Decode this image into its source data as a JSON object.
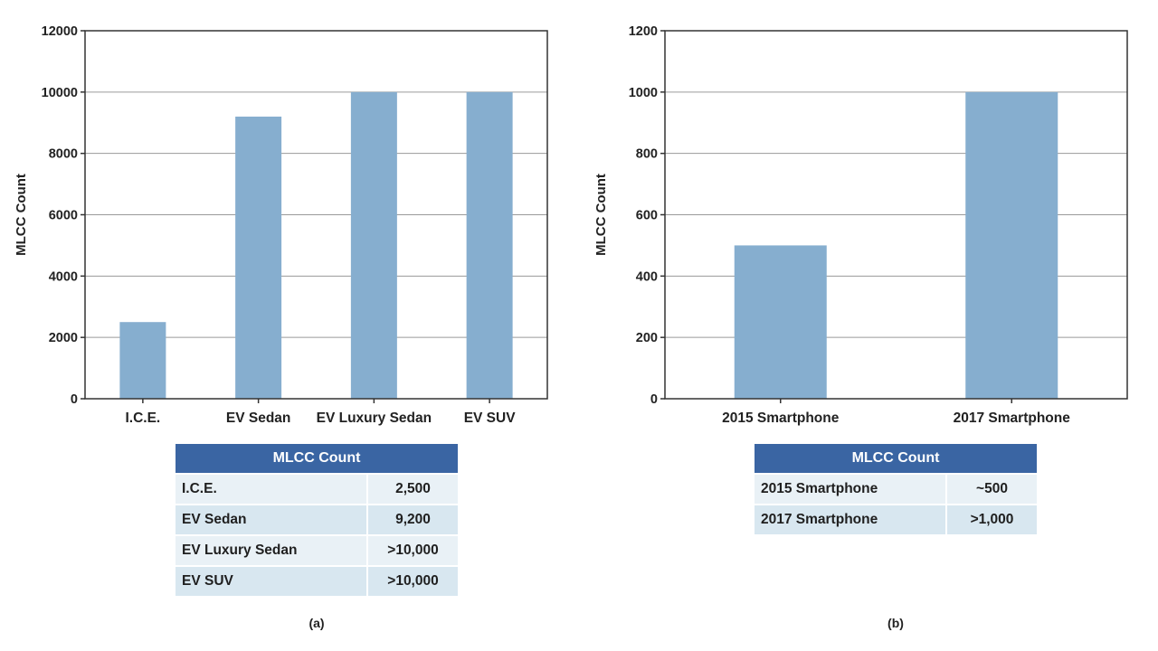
{
  "chart_data": [
    {
      "type": "bar",
      "caption": "(a)",
      "ylabel": "MLCC Count",
      "ylim": [
        0,
        12000
      ],
      "yticks": [
        "0",
        "2000",
        "4000",
        "6000",
        "8000",
        "10000",
        "12000"
      ],
      "categories": [
        "I.C.E.",
        "EV Sedan",
        "EV Luxury Sedan",
        "EV SUV"
      ],
      "values": [
        2500,
        9200,
        10000,
        10000
      ],
      "grid": true,
      "color": "#86aecf",
      "table": {
        "header": "MLCC Count",
        "rows": [
          {
            "label": "I.C.E.",
            "value": "2,500"
          },
          {
            "label": "EV Sedan",
            "value": "9,200"
          },
          {
            "label": "EV Luxury Sedan",
            "value": ">10,000"
          },
          {
            "label": "EV SUV",
            "value": ">10,000"
          }
        ]
      }
    },
    {
      "type": "bar",
      "caption": "(b)",
      "ylabel": "MLCC Count",
      "ylim": [
        0,
        1200
      ],
      "yticks": [
        "0",
        "200",
        "400",
        "600",
        "800",
        "1000",
        "1200"
      ],
      "categories": [
        "2015 Smartphone",
        "2017 Smartphone"
      ],
      "values": [
        500,
        1000
      ],
      "grid": true,
      "color": "#86aecf",
      "table": {
        "header": "MLCC Count",
        "rows": [
          {
            "label": "2015 Smartphone",
            "value": "~500"
          },
          {
            "label": "2017 Smartphone",
            "value": ">1,000"
          }
        ]
      }
    }
  ]
}
